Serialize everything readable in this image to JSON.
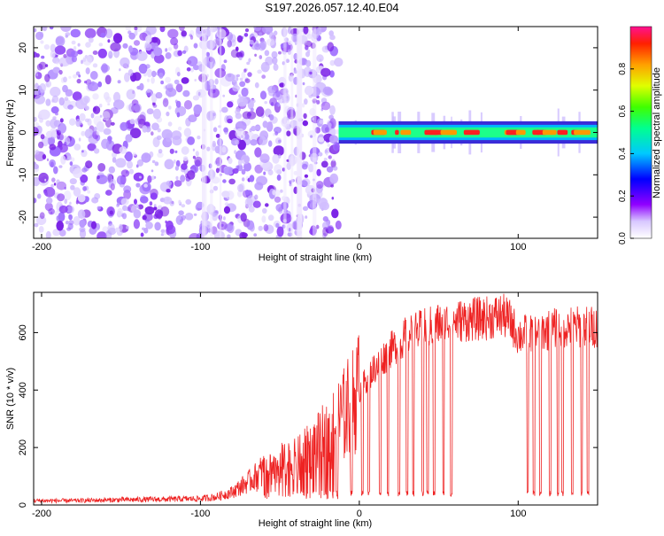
{
  "title": "S197.2026.057.12.40.E04",
  "chart_data": [
    {
      "type": "heatmap",
      "xlabel": "Height of straight line (km)",
      "ylabel": "Frequency (Hz)",
      "xlim": [
        -205,
        150
      ],
      "ylim": [
        -25,
        25
      ],
      "xticks": [
        -200,
        -100,
        0,
        100
      ],
      "yticks": [
        -20,
        -10,
        0,
        10,
        20
      ],
      "noise_region": [
        -205,
        -13
      ],
      "signal_band": {
        "x_start": -13,
        "x_end": 150,
        "center_hz": 0,
        "halfwidth_hz": 1.2
      },
      "colorbar": {
        "label": "Normalized spectral amplitude",
        "range": [
          0,
          1
        ],
        "ticks": [
          0.0,
          0.2,
          0.4,
          0.6,
          0.8
        ],
        "tick_labels": [
          "0.0",
          "0.2",
          "0.4",
          "0.6",
          "0.8"
        ]
      }
    },
    {
      "type": "line",
      "xlabel": "Height of straight line (km)",
      "ylabel": "SNR (10 * v/v)",
      "xlim": [
        -205,
        150
      ],
      "ylim": [
        0,
        740
      ],
      "xticks": [
        -200,
        -100,
        0,
        100
      ],
      "yticks": [
        0,
        200,
        400,
        600
      ],
      "series": [
        {
          "name": "SNR",
          "color": "#ee2222",
          "x": [
            -205,
            -180,
            -150,
            -120,
            -100,
            -90,
            -80,
            -70,
            -60,
            -50,
            -40,
            -30,
            -20,
            -10,
            0,
            10,
            20,
            30,
            40,
            50,
            60,
            70,
            80,
            90,
            95,
            100,
            110,
            120,
            130,
            140,
            150
          ],
          "y": [
            15,
            15,
            18,
            20,
            22,
            28,
            45,
            80,
            120,
            140,
            150,
            190,
            240,
            310,
            400,
            480,
            540,
            590,
            610,
            630,
            640,
            645,
            650,
            660,
            640,
            590,
            600,
            610,
            620,
            620,
            620
          ]
        }
      ],
      "dropouts_km": [
        -14,
        -5,
        2,
        6,
        13,
        18,
        25,
        30,
        34,
        40,
        43,
        47,
        53,
        58,
        106,
        110,
        114,
        120,
        125,
        128,
        134,
        140,
        144
      ]
    }
  ]
}
